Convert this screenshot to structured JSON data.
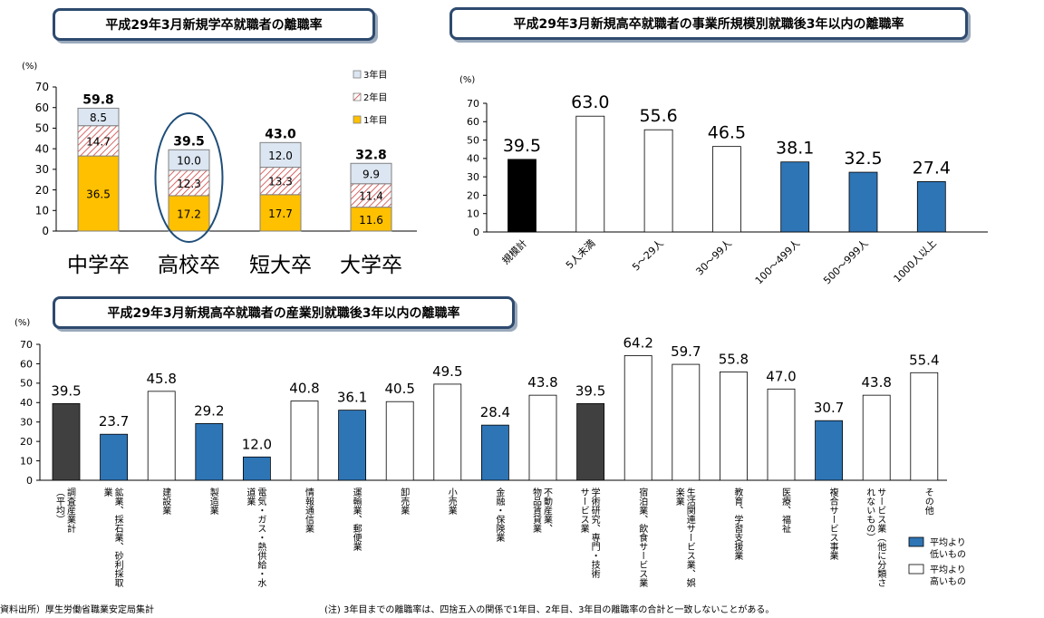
{
  "titles": {
    "top_left": "平成29年3月新規学卒就職者の離職率",
    "top_right": "平成29年3月新規高卒就職者の事業所規模別就職後3年以内の離職率",
    "bottom": "平成29年3月新規高卒就職者の産業別就職後3年以内の離職率"
  },
  "footnotes": {
    "source": "資料出所）厚生労働省職業安定局集計",
    "note": "(注)  3年目までの離職率は、四捨五入の関係で1年目、2年目、3年目の離職率の合計と一致しないことがある。"
  },
  "chart_data": [
    {
      "type": "bar",
      "stacked": true,
      "title": "平成29年3月新規学卒就職者の離職率",
      "unit": "(%)",
      "categories": [
        "中学卒",
        "高校卒",
        "短大卒",
        "大学卒"
      ],
      "series": [
        {
          "name": "1年目",
          "values": [
            36.5,
            17.2,
            17.7,
            11.6
          ],
          "color": "#FFC000"
        },
        {
          "name": "2年目",
          "values": [
            14.7,
            12.3,
            13.3,
            11.4
          ],
          "color": "#E8A0A0"
        },
        {
          "name": "3年目",
          "values": [
            8.5,
            10.0,
            12.0,
            9.9
          ],
          "color": "#DCE6F2"
        }
      ],
      "totals": [
        59.8,
        39.5,
        43.0,
        32.8
      ],
      "legend": [
        "3年目",
        "2年目",
        "1年目"
      ],
      "legend_position": "top-right",
      "ylim": [
        0,
        70
      ],
      "yticks": [
        0,
        10,
        20,
        30,
        40,
        50,
        60,
        70
      ],
      "highlight": "高校卒",
      "grid": false
    },
    {
      "type": "bar",
      "title": "平成29年3月新規高卒就職者の事業所規模別就職後3年以内の離職率",
      "unit": "(%)",
      "categories": [
        "規模計",
        "5人未満",
        "5～29人",
        "30～99人",
        "100～499人",
        "500～999人",
        "1000人以上"
      ],
      "values": [
        39.5,
        63.0,
        55.6,
        46.5,
        38.1,
        32.5,
        27.4
      ],
      "colors": [
        "#000000",
        "#FFFFFF",
        "#FFFFFF",
        "#FFFFFF",
        "#2E75B6",
        "#2E75B6",
        "#2E75B6"
      ],
      "ylim": [
        0,
        70
      ],
      "yticks": [
        0,
        10,
        20,
        30,
        40,
        50,
        60,
        70
      ],
      "grid": false
    },
    {
      "type": "bar",
      "title": "平成29年3月新規高卒就職者の産業別就職後3年以内の離職率",
      "unit": "(%)",
      "categories": [
        "調査産業計（平均）",
        "鉱業、採石業、砂利採取業",
        "建設業",
        "製造業",
        "電気・ガス・熱供給・水道業",
        "情報通信業",
        "運輸業、郵便業",
        "卸売業",
        "小売業",
        "金融・保険業",
        "不動産業、物品賃貸業",
        "学術研究、専門・技術サービス業",
        "宿泊業、飲食サービス業",
        "生活関連サービス業、娯楽業",
        "教育、学習支援業",
        "医療、福祉",
        "複合サービス事業",
        "サービス業（他に分類されないもの）",
        "その他"
      ],
      "label_lines": [
        [
          "調査産業計",
          "（平均）"
        ],
        [
          "鉱業、採石業、砂利採取",
          "業"
        ],
        [
          "建設業"
        ],
        [
          "製造業"
        ],
        [
          "電気・ガス・熱供給・水",
          "道業"
        ],
        [
          "情報通信業"
        ],
        [
          "運輸業、郵便業"
        ],
        [
          "卸売業"
        ],
        [
          "小売業"
        ],
        [
          "金融・保険業"
        ],
        [
          "不動産業、",
          "物品賃貸業"
        ],
        [
          "学術研究、専門・技術",
          "サービス業"
        ],
        [
          "宿泊業、飲食サービス業"
        ],
        [
          "生活関連サービス業、娯",
          "楽業"
        ],
        [
          "教育、学習支援業"
        ],
        [
          "医療、福祉"
        ],
        [
          "複合サービス事業"
        ],
        [
          "サービス業（他に分類さ",
          "れないもの）"
        ],
        [
          "その他"
        ]
      ],
      "values": [
        39.5,
        23.7,
        45.8,
        29.2,
        12.0,
        40.8,
        36.1,
        40.5,
        49.5,
        28.4,
        43.8,
        39.5,
        64.2,
        59.7,
        55.8,
        47.0,
        30.7,
        43.8,
        55.4
      ],
      "groups": [
        "avg",
        "low",
        "high",
        "low",
        "low",
        "high",
        "low",
        "high",
        "high",
        "low",
        "high",
        "avg",
        "high",
        "high",
        "high",
        "high",
        "low",
        "high",
        "high"
      ],
      "colors": {
        "avg": "#404040",
        "low": "#2E75B6",
        "high": "#FFFFFF"
      },
      "legend": [
        {
          "key": "low",
          "label": [
            "平均より",
            "低いもの"
          ]
        },
        {
          "key": "high",
          "label": [
            "平均より",
            "高いもの"
          ]
        }
      ],
      "legend_position": "bottom-right",
      "ylim": [
        0,
        70
      ],
      "yticks": [
        0,
        10,
        20,
        30,
        40,
        50,
        60,
        70
      ],
      "grid": false
    }
  ]
}
